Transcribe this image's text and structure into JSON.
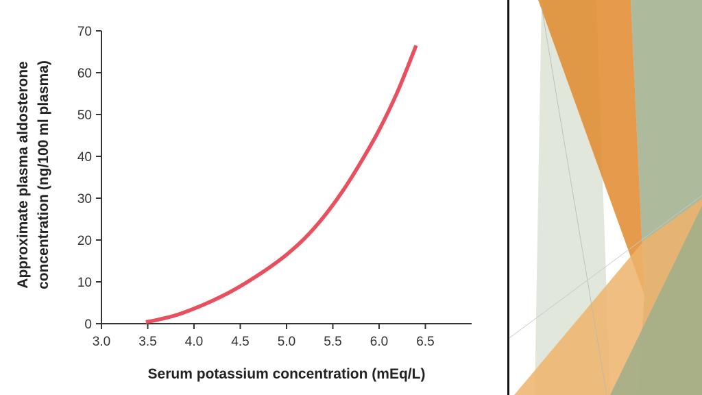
{
  "chart_data": {
    "type": "line",
    "xlabel": "Serum potassium concentration (mEq/L)",
    "ylabel_lines": [
      "Approximate plasma aldosterone",
      "concentration (ng/100 ml plasma)"
    ],
    "xlim": [
      3.0,
      7.0
    ],
    "ylim": [
      0,
      70
    ],
    "x_ticks": [
      3.0,
      3.5,
      4.0,
      4.5,
      5.0,
      5.5,
      6.0,
      6.5
    ],
    "x_tick_labels": [
      "3.0",
      "3.5",
      "4.0",
      "4.5",
      "5.0",
      "5.5",
      "6.0",
      "6.5"
    ],
    "y_ticks": [
      0,
      10,
      20,
      30,
      40,
      50,
      60,
      70
    ],
    "y_tick_labels": [
      "0",
      "10",
      "20",
      "30",
      "40",
      "50",
      "60",
      "70"
    ],
    "grid": false,
    "series": [
      {
        "color": "#e8505f",
        "x": [
          3.48,
          3.6,
          3.8,
          4.0,
          4.2,
          4.4,
          4.6,
          4.8,
          5.0,
          5.2,
          5.4,
          5.6,
          5.8,
          6.0,
          6.2,
          6.4
        ],
        "y": [
          0.4,
          0.9,
          2.0,
          3.6,
          5.5,
          7.7,
          10.3,
          13.2,
          16.5,
          20.5,
          25.5,
          31.5,
          38.5,
          46.3,
          55.5,
          66.5
        ]
      }
    ]
  },
  "decoration": {
    "colors": {
      "orange": "#e08a2c",
      "light_orange": "#efb36b",
      "sage": "#9fae8a",
      "pale_sage": "#d9e1d2",
      "divider": "#111111"
    }
  }
}
